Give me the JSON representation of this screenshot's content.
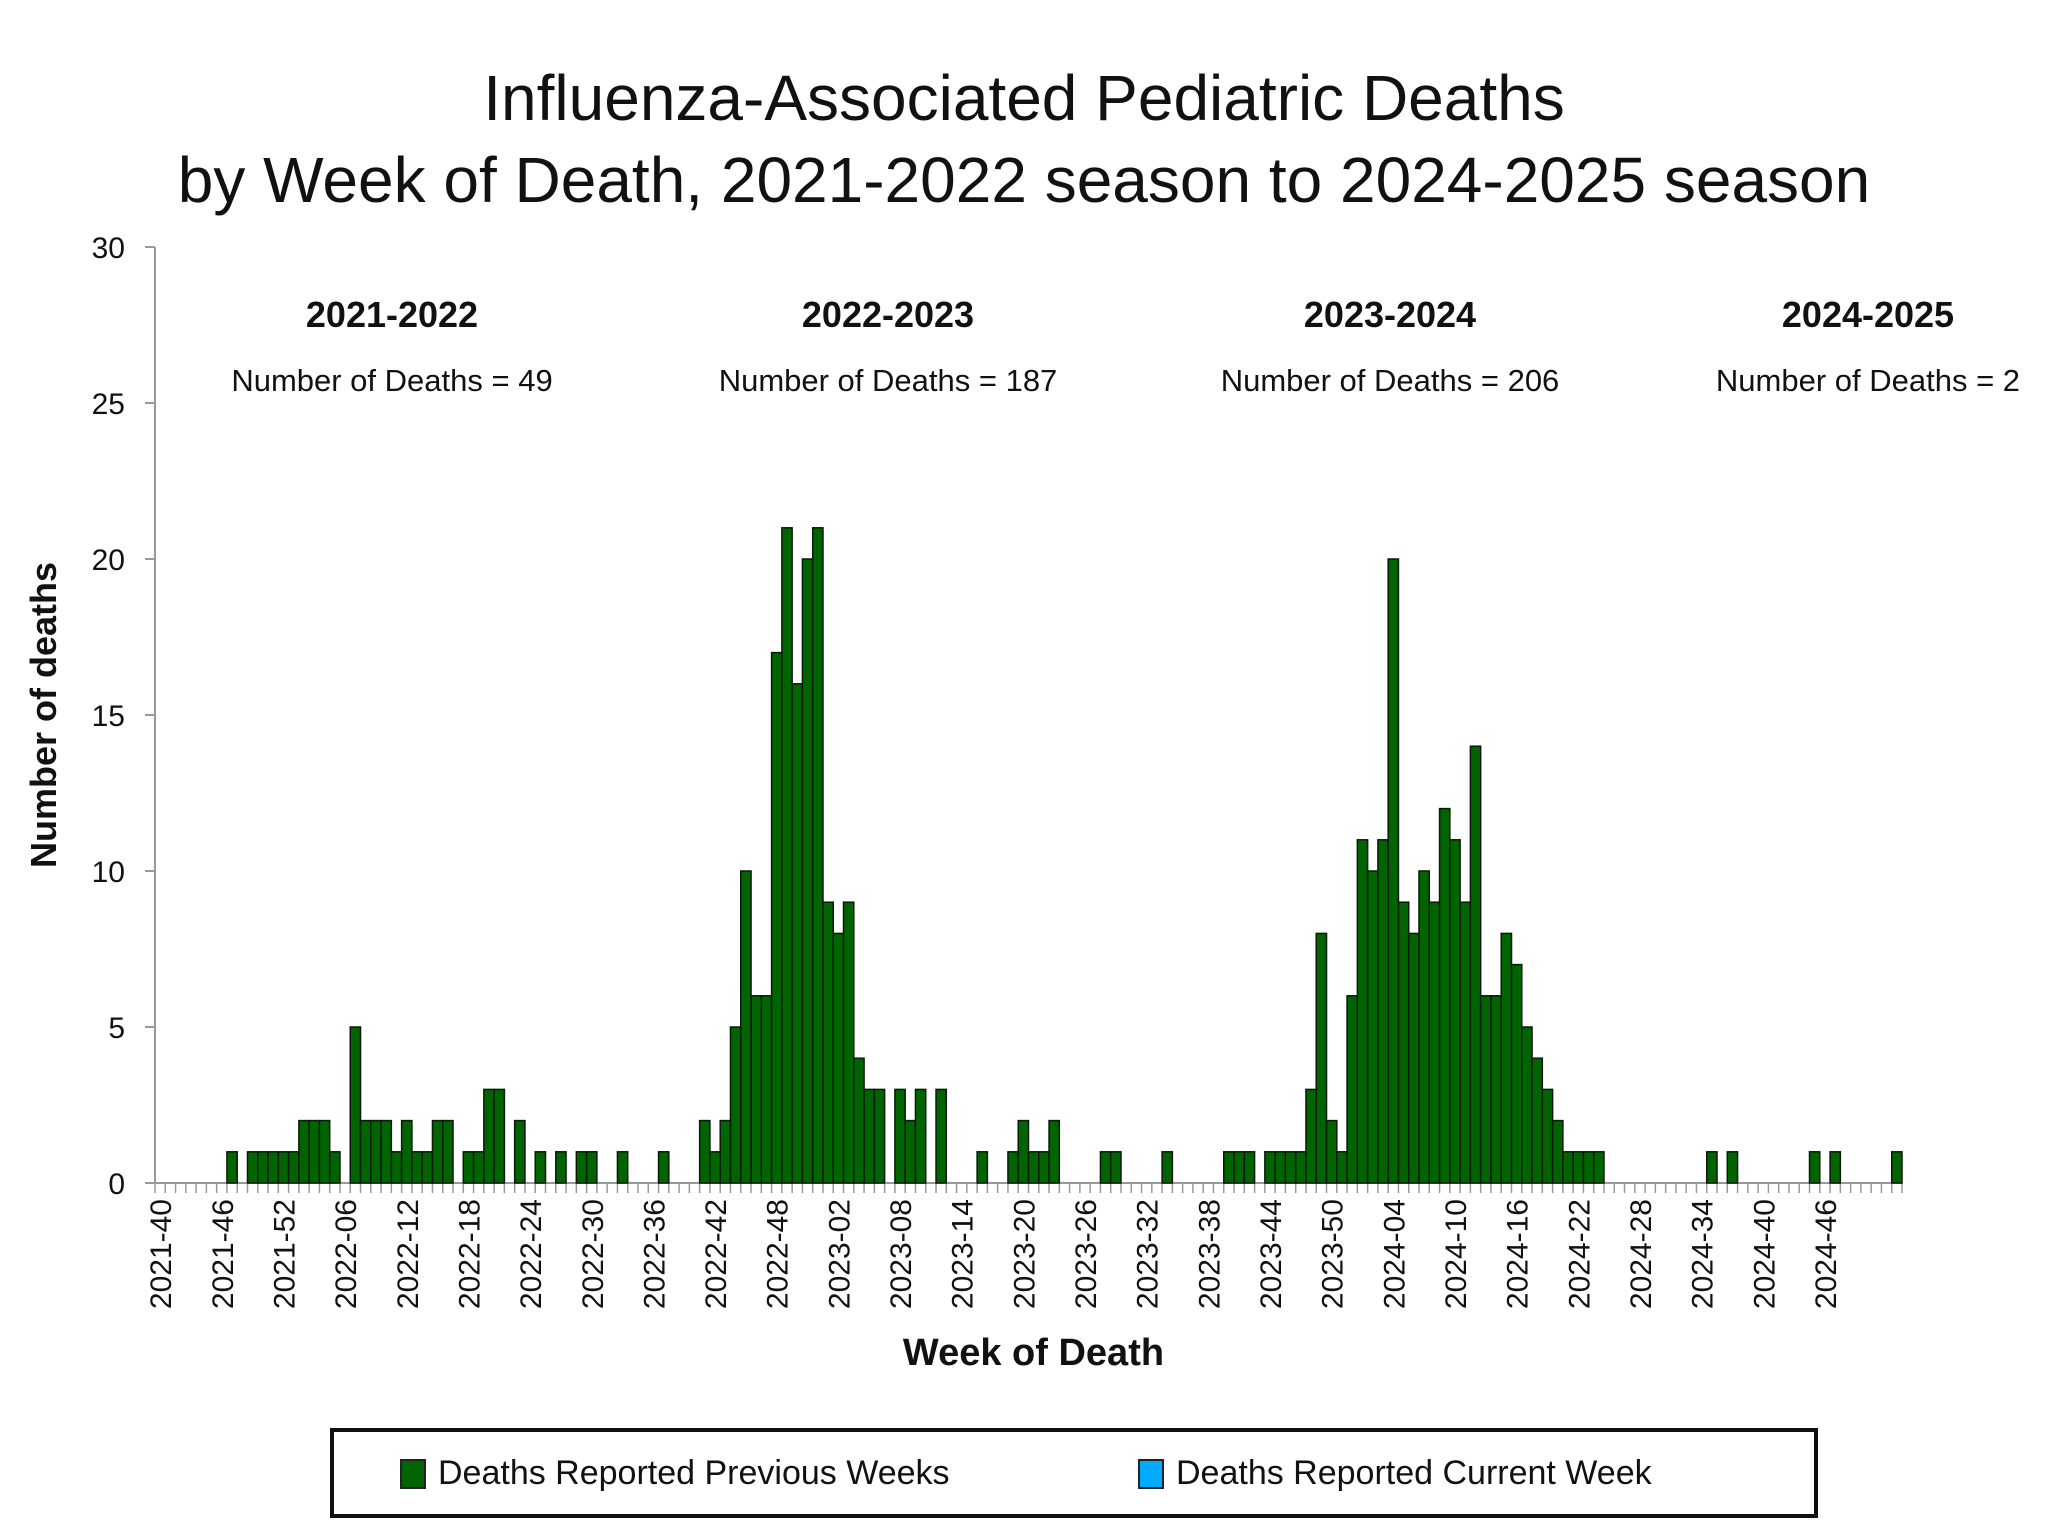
{
  "title_line1": "Influenza-Associated Pediatric Deaths",
  "title_line2": "by Week of Death, 2021-2022 season to 2024-2025 season",
  "chart_data": {
    "type": "bar",
    "title": "Influenza-Associated Pediatric Deaths by Week of Death, 2021-2022 season to 2024-2025 season",
    "xlabel": "Week of Death",
    "ylabel": "Number of deaths",
    "ylim": [
      0,
      30
    ],
    "yticks": [
      0,
      5,
      10,
      15,
      20,
      25,
      30
    ],
    "start_week": "2021-40",
    "xticklabels": [
      "2021-40",
      "2021-46",
      "2021-52",
      "2022-06",
      "2022-12",
      "2022-18",
      "2022-24",
      "2022-30",
      "2022-36",
      "2022-42",
      "2022-48",
      "2023-02",
      "2023-08",
      "2023-14",
      "2023-20",
      "2023-26",
      "2023-32",
      "2023-38",
      "2023-44",
      "2023-50",
      "2024-04",
      "2024-10",
      "2024-16",
      "2024-22",
      "2024-28",
      "2024-34",
      "2024-40",
      "2024-46"
    ],
    "series": [
      {
        "name": "Deaths Reported Previous Weeks",
        "color": "#006400",
        "values": [
          0,
          0,
          0,
          0,
          0,
          0,
          0,
          1,
          0,
          1,
          1,
          1,
          1,
          1,
          2,
          2,
          2,
          1,
          0,
          5,
          2,
          2,
          2,
          1,
          2,
          1,
          1,
          2,
          2,
          0,
          1,
          1,
          3,
          3,
          0,
          2,
          0,
          1,
          0,
          1,
          0,
          1,
          1,
          0,
          0,
          1,
          0,
          0,
          0,
          1,
          0,
          0,
          0,
          2,
          1,
          2,
          5,
          10,
          6,
          6,
          17,
          21,
          16,
          20,
          21,
          9,
          8,
          9,
          4,
          3,
          3,
          0,
          3,
          2,
          3,
          0,
          3,
          0,
          0,
          0,
          1,
          0,
          0,
          1,
          2,
          1,
          1,
          2,
          0,
          0,
          0,
          0,
          1,
          1,
          0,
          0,
          0,
          0,
          1,
          0,
          0,
          0,
          0,
          0,
          1,
          1,
          1,
          0,
          1,
          1,
          1,
          1,
          3,
          8,
          2,
          1,
          6,
          11,
          10,
          11,
          20,
          9,
          8,
          10,
          9,
          12,
          11,
          9,
          14,
          6,
          6,
          8,
          7,
          5,
          4,
          3,
          2,
          1,
          1,
          1,
          1,
          0,
          0,
          0,
          0,
          0,
          0,
          0,
          0,
          0,
          0,
          1,
          0,
          1,
          0,
          0,
          0,
          0,
          0,
          0,
          0,
          1,
          0,
          1,
          0,
          0,
          0,
          0,
          0,
          1
        ]
      },
      {
        "name": "Deaths Reported Current Week",
        "color": "#00aaff",
        "values": []
      }
    ],
    "season_labels": [
      {
        "season": "2021-2022",
        "text": "Number of Deaths = 49"
      },
      {
        "season": "2022-2023",
        "text": "Number of Deaths = 187"
      },
      {
        "season": "2023-2024",
        "text": "Number of Deaths = 206"
      },
      {
        "season": "2024-2025",
        "text": "Number of Deaths = 2"
      }
    ],
    "grid": false,
    "legend_position": "bottom"
  },
  "legend": {
    "item1": "Deaths Reported Previous Weeks",
    "item2": "Deaths Reported Current Week",
    "color1": "#006400",
    "color2": "#00aaff"
  }
}
